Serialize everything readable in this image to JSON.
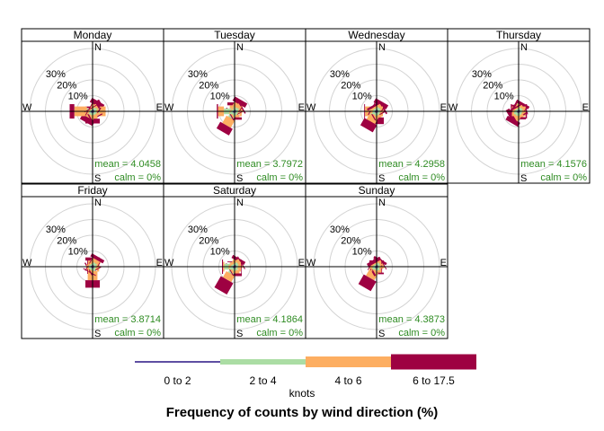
{
  "chart_data": {
    "type": "polar-bar",
    "title": "Frequency of counts by wind direction (%)",
    "legend": {
      "title": "knots",
      "placement": "bottom",
      "bins": [
        {
          "label": "0 to 2",
          "color": "#5E4FA2"
        },
        {
          "label": "2 to 4",
          "color": "#ABDDA4"
        },
        {
          "label": "4 to 6",
          "color": "#FDAE61"
        },
        {
          "label": "6 to 17.5",
          "color": "#9E0142"
        }
      ]
    },
    "radial_ticks": [
      10,
      20,
      30
    ],
    "radial_tick_suffix": "%",
    "rmax": 40,
    "compass_labels": {
      "n": "N",
      "s": "S",
      "e": "E",
      "w": "W"
    },
    "directions_deg": [
      0,
      30,
      60,
      90,
      120,
      150,
      180,
      210,
      240,
      270,
      300,
      330
    ],
    "panels": [
      {
        "name": "Monday",
        "mean_label": "mean = 4.0458",
        "calm_label": "calm = 0%",
        "freq": [
          [
            0.5,
            0.9,
            1.1,
            1.0,
            0.8,
            0.9,
            1.0,
            0.9,
            0.8,
            1.4,
            0.8,
            0.8
          ],
          [
            0.6,
            1.8,
            1.6,
            3.5,
            1.0,
            1.5,
            1.0,
            1.0,
            1.3,
            2.2,
            0.6,
            0.6
          ],
          [
            1.0,
            1.6,
            1.5,
            3.8,
            1.1,
            1.7,
            2.7,
            2.9,
            0.9,
            8.0,
            1.0,
            0.5
          ],
          [
            1.0,
            3.0,
            3.1,
            0,
            0.8,
            0.7,
            3.0,
            3.4,
            0.8,
            3.0,
            0.5,
            0.5
          ]
        ]
      },
      {
        "name": "Tuesday",
        "mean_label": "mean = 3.7972",
        "calm_label": "calm = 0%",
        "freq": [
          [
            0.8,
            0.9,
            1.0,
            0.9,
            0.8,
            0.8,
            0.9,
            0.9,
            0.8,
            1.3,
            0.8,
            0.7
          ],
          [
            1.0,
            1.8,
            1.6,
            2.3,
            0.9,
            1.0,
            1.2,
            4.0,
            1.2,
            5.5,
            1.2,
            0.8
          ],
          [
            2.0,
            2.6,
            2.2,
            1.3,
            0.7,
            0.6,
            1.7,
            5.4,
            1.0,
            3.7,
            0.5,
            0.5
          ],
          [
            1.9,
            3.0,
            0.8,
            0,
            0.5,
            0.4,
            1.5,
            4.8,
            0.6,
            0.8,
            0,
            0
          ]
        ]
      },
      {
        "name": "Wednesday",
        "mean_label": "mean = 4.2958",
        "calm_label": "calm = 0%",
        "freq": [
          [
            0.8,
            1.0,
            1.0,
            0.9,
            0.8,
            0.8,
            0.9,
            0.9,
            0.9,
            1.3,
            0.8,
            0.9
          ],
          [
            0.9,
            1.4,
            1.4,
            1.6,
            0.8,
            0.9,
            1.2,
            1.8,
            1.2,
            3.0,
            1.1,
            1.1
          ],
          [
            0.9,
            1.6,
            1.9,
            1.5,
            0.8,
            0.8,
            1.8,
            4.8,
            1.0,
            3.1,
            1.3,
            1.1
          ],
          [
            0.4,
            3.0,
            1.0,
            0,
            0.5,
            0.6,
            4.2,
            5.3,
            0.7,
            0.5,
            0.6,
            1.4
          ]
        ]
      },
      {
        "name": "Thursday",
        "mean_label": "mean = 4.1576",
        "calm_label": "calm = 0%",
        "freq": [
          [
            0.8,
            0.9,
            1.0,
            1.0,
            0.8,
            0.8,
            0.9,
            0.9,
            0.9,
            1.1,
            0.8,
            0.8
          ],
          [
            1.0,
            1.5,
            1.3,
            1.5,
            0.9,
            1.0,
            1.1,
            1.8,
            1.8,
            1.9,
            1.3,
            1.0
          ],
          [
            1.2,
            1.8,
            1.6,
            2.0,
            1.2,
            1.2,
            1.7,
            3.2,
            1.5,
            1.3,
            1.2,
            0.8
          ],
          [
            1.2,
            1.8,
            0.5,
            0.8,
            0.4,
            0.8,
            1.4,
            2.8,
            2.6,
            0.7,
            1.2,
            0.8
          ]
        ]
      },
      {
        "name": "Friday",
        "mean_label": "mean = 3.8714",
        "calm_label": "calm = 0%",
        "freq": [
          [
            0.8,
            1.0,
            1.0,
            0.9,
            0.8,
            0.8,
            1.0,
            0.9,
            0.8,
            1.0,
            0.8,
            0.9
          ],
          [
            0.9,
            1.5,
            1.5,
            1.9,
            0.9,
            0.9,
            1.8,
            1.1,
            1.0,
            1.2,
            1.0,
            1.0
          ],
          [
            2.2,
            2.5,
            1.8,
            1.4,
            0.8,
            0.9,
            5.8,
            1.6,
            0.8,
            0.8,
            0.7,
            0.9
          ],
          [
            2.0,
            2.2,
            0,
            0,
            0.5,
            0.5,
            4.8,
            0.6,
            0.7,
            0.4,
            0.5,
            0
          ]
        ]
      },
      {
        "name": "Saturday",
        "mean_label": "mean = 4.1864",
        "calm_label": "calm = 0%",
        "freq": [
          [
            0.8,
            1.0,
            1.1,
            0.9,
            0.8,
            0.8,
            0.9,
            0.9,
            0.8,
            1.3,
            0.8,
            0.8
          ],
          [
            1.0,
            1.6,
            1.6,
            1.5,
            0.9,
            0.9,
            1.2,
            4.2,
            1.2,
            5.2,
            1.3,
            1.0
          ],
          [
            1.0,
            1.3,
            1.9,
            1.6,
            0.7,
            0.7,
            2.2,
            4.5,
            1.3,
            0.9,
            0.8,
            0.8
          ],
          [
            0.5,
            2.1,
            0.6,
            0.4,
            0,
            0,
            1.7,
            8.2,
            0.5,
            0.6,
            0,
            0
          ]
        ]
      },
      {
        "name": "Sunday",
        "mean_label": "mean = 4.3873",
        "calm_label": "calm = 0%",
        "freq": [
          [
            0.8,
            0.9,
            1.0,
            0.9,
            0.8,
            0.8,
            0.9,
            0.9,
            0.8,
            1.2,
            0.8,
            0.8
          ],
          [
            0.9,
            1.3,
            1.4,
            1.1,
            0.8,
            0.8,
            1.4,
            2.3,
            1.0,
            1.5,
            1.2,
            0.9
          ],
          [
            1.2,
            1.5,
            1.9,
            1.0,
            0.8,
            0.8,
            1.5,
            5.1,
            1.3,
            0.7,
            1.5,
            0.8
          ],
          [
            1.1,
            1.6,
            0.5,
            0.5,
            0,
            0,
            1.0,
            7.0,
            1.2,
            0,
            0.5,
            2.2
          ]
        ]
      }
    ]
  }
}
